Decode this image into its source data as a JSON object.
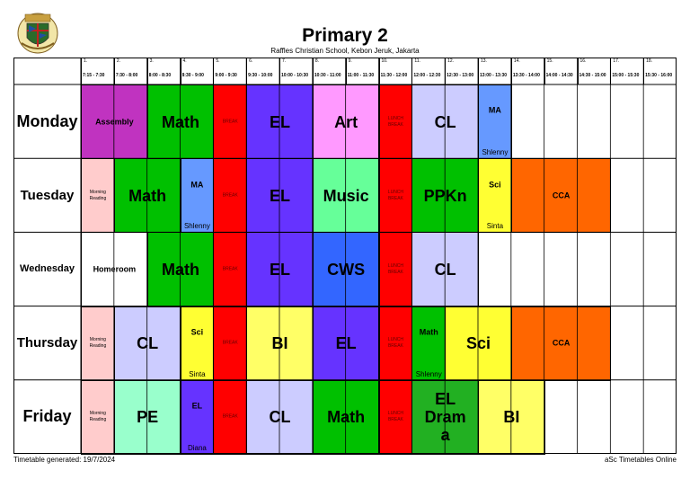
{
  "header": {
    "title": "Primary 2",
    "subtitle": "Raffles Christian School, Kebon Jeruk, Jakarta"
  },
  "periods": [
    {
      "num": "1.",
      "time": "7:15 - 7:30"
    },
    {
      "num": "2.",
      "time": "7:30 - 8:00"
    },
    {
      "num": "3.",
      "time": "8:00 - 8:30"
    },
    {
      "num": "4.",
      "time": "8:30 - 9:00"
    },
    {
      "num": "5.",
      "time": "9:00 - 9:30"
    },
    {
      "num": "6.",
      "time": "9:30 - 10:00"
    },
    {
      "num": "7.",
      "time": "10:00 - 10:30"
    },
    {
      "num": "8.",
      "time": "10:30 - 11:00"
    },
    {
      "num": "9.",
      "time": "11:00 - 11:30"
    },
    {
      "num": "10.",
      "time": "11:30 - 12:00"
    },
    {
      "num": "11.",
      "time": "12:00 - 12:30"
    },
    {
      "num": "12.",
      "time": "12:30 - 13:00"
    },
    {
      "num": "13.",
      "time": "13:00 - 13:30"
    },
    {
      "num": "14.",
      "time": "13:30 - 14:00"
    },
    {
      "num": "15.",
      "time": "14:00 - 14:30"
    },
    {
      "num": "16.",
      "time": "14:30 - 15:00"
    },
    {
      "num": "17.",
      "time": "15:00 - 15:30"
    },
    {
      "num": "18.",
      "time": "15:30 - 16:00"
    }
  ],
  "days": [
    {
      "name": "Monday",
      "cells": [
        {
          "label": "Assembly",
          "start": 1,
          "span": 2,
          "color": "#c033c0",
          "size": "s"
        },
        {
          "label": "Math",
          "start": 3,
          "span": 2,
          "color": "#00c000",
          "size": "l"
        },
        {
          "label": "BREAK",
          "start": 5,
          "span": 1,
          "color": "#ff0000",
          "size": "xs"
        },
        {
          "label": "EL",
          "start": 6,
          "span": 2,
          "color": "#6633ff",
          "size": "l"
        },
        {
          "label": "Art",
          "start": 8,
          "span": 2,
          "color": "#ff99ff",
          "size": "l"
        },
        {
          "label": "LUNCH BREAK",
          "start": 10,
          "span": 1,
          "color": "#ff0000",
          "size": "xs"
        },
        {
          "label": "CL",
          "start": 11,
          "span": 2,
          "color": "#ccccff",
          "size": "l"
        },
        {
          "label": "MA",
          "sub": "Shlenny",
          "start": 13,
          "span": 1,
          "color": "#6699ff",
          "size": "s"
        }
      ]
    },
    {
      "name": "Tuesday",
      "cells": [
        {
          "label": "Morning Reading",
          "start": 1,
          "span": 1,
          "color": "#ffcccc",
          "size": "xs"
        },
        {
          "label": "Math",
          "start": 2,
          "span": 2,
          "color": "#00c000",
          "size": "l"
        },
        {
          "label": "MA",
          "sub": "Shlenny",
          "start": 4,
          "span": 1,
          "color": "#6699ff",
          "size": "s"
        },
        {
          "label": "BREAK",
          "start": 5,
          "span": 1,
          "color": "#ff0000",
          "size": "xs"
        },
        {
          "label": "EL",
          "start": 6,
          "span": 2,
          "color": "#6633ff",
          "size": "l"
        },
        {
          "label": "Music",
          "start": 8,
          "span": 2,
          "color": "#66ff99",
          "size": "l"
        },
        {
          "label": "LUNCH BREAK",
          "start": 10,
          "span": 1,
          "color": "#ff0000",
          "size": "xs"
        },
        {
          "label": "PPKn",
          "start": 11,
          "span": 2,
          "color": "#00c000",
          "size": "l"
        },
        {
          "label": "Sci",
          "sub": "Sinta",
          "start": 13,
          "span": 1,
          "color": "#ffff33",
          "size": "s"
        },
        {
          "label": "CCA",
          "start": 14,
          "span": 3,
          "color": "#ff6600",
          "size": "s"
        }
      ]
    },
    {
      "name": "Wednesday",
      "cells": [
        {
          "label": "Homeroom",
          "start": 1,
          "span": 2,
          "color": "#ffffff",
          "size": "s"
        },
        {
          "label": "Math",
          "start": 3,
          "span": 2,
          "color": "#00c000",
          "size": "l"
        },
        {
          "label": "BREAK",
          "start": 5,
          "span": 1,
          "color": "#ff0000",
          "size": "xs"
        },
        {
          "label": "EL",
          "start": 6,
          "span": 2,
          "color": "#6633ff",
          "size": "l"
        },
        {
          "label": "CWS",
          "start": 8,
          "span": 2,
          "color": "#3366ff",
          "size": "l"
        },
        {
          "label": "LUNCH BREAK",
          "start": 10,
          "span": 1,
          "color": "#ff0000",
          "size": "xs"
        },
        {
          "label": "CL",
          "start": 11,
          "span": 2,
          "color": "#ccccff",
          "size": "l"
        }
      ]
    },
    {
      "name": "Thursday",
      "cells": [
        {
          "label": "Morning Reading",
          "start": 1,
          "span": 1,
          "color": "#ffcccc",
          "size": "xs"
        },
        {
          "label": "CL",
          "start": 2,
          "span": 2,
          "color": "#ccccff",
          "size": "l"
        },
        {
          "label": "Sci",
          "sub": "Sinta",
          "start": 4,
          "span": 1,
          "color": "#ffff33",
          "size": "s"
        },
        {
          "label": "BREAK",
          "start": 5,
          "span": 1,
          "color": "#ff0000",
          "size": "xs"
        },
        {
          "label": "BI",
          "start": 6,
          "span": 2,
          "color": "#ffff66",
          "size": "l"
        },
        {
          "label": "EL",
          "start": 8,
          "span": 2,
          "color": "#6633ff",
          "size": "l"
        },
        {
          "label": "LUNCH BREAK",
          "start": 10,
          "span": 1,
          "color": "#ff0000",
          "size": "xs"
        },
        {
          "label": "Math",
          "sub": "Shlenny",
          "start": 11,
          "span": 1,
          "color": "#00c000",
          "size": "s"
        },
        {
          "label": "Sci",
          "start": 12,
          "span": 2,
          "color": "#ffff33",
          "size": "l"
        },
        {
          "label": "CCA",
          "start": 14,
          "span": 3,
          "color": "#ff6600",
          "size": "s"
        }
      ]
    },
    {
      "name": "Friday",
      "cells": [
        {
          "label": "Morning Reading",
          "start": 1,
          "span": 1,
          "color": "#ffcccc",
          "size": "xs"
        },
        {
          "label": "PE",
          "start": 2,
          "span": 2,
          "color": "#99ffcc",
          "size": "l"
        },
        {
          "label": "EL",
          "sub": "Diana",
          "start": 4,
          "span": 1,
          "color": "#6633ff",
          "size": "s"
        },
        {
          "label": "BREAK",
          "start": 5,
          "span": 1,
          "color": "#ff0000",
          "size": "xs"
        },
        {
          "label": "CL",
          "start": 6,
          "span": 2,
          "color": "#ccccff",
          "size": "l"
        },
        {
          "label": "Math",
          "start": 8,
          "span": 2,
          "color": "#00c000",
          "size": "l"
        },
        {
          "label": "LUNCH BREAK",
          "start": 10,
          "span": 1,
          "color": "#ff0000",
          "size": "xs"
        },
        {
          "label": "EL Dram a",
          "start": 11,
          "span": 2,
          "color": "#22b022",
          "size": "l"
        },
        {
          "label": "BI",
          "start": 13,
          "span": 2,
          "color": "#ffff66",
          "size": "l"
        }
      ]
    }
  ],
  "footer": {
    "generated": "Timetable generated: 19/7/2024",
    "brand": "aSc Timetables Online"
  }
}
